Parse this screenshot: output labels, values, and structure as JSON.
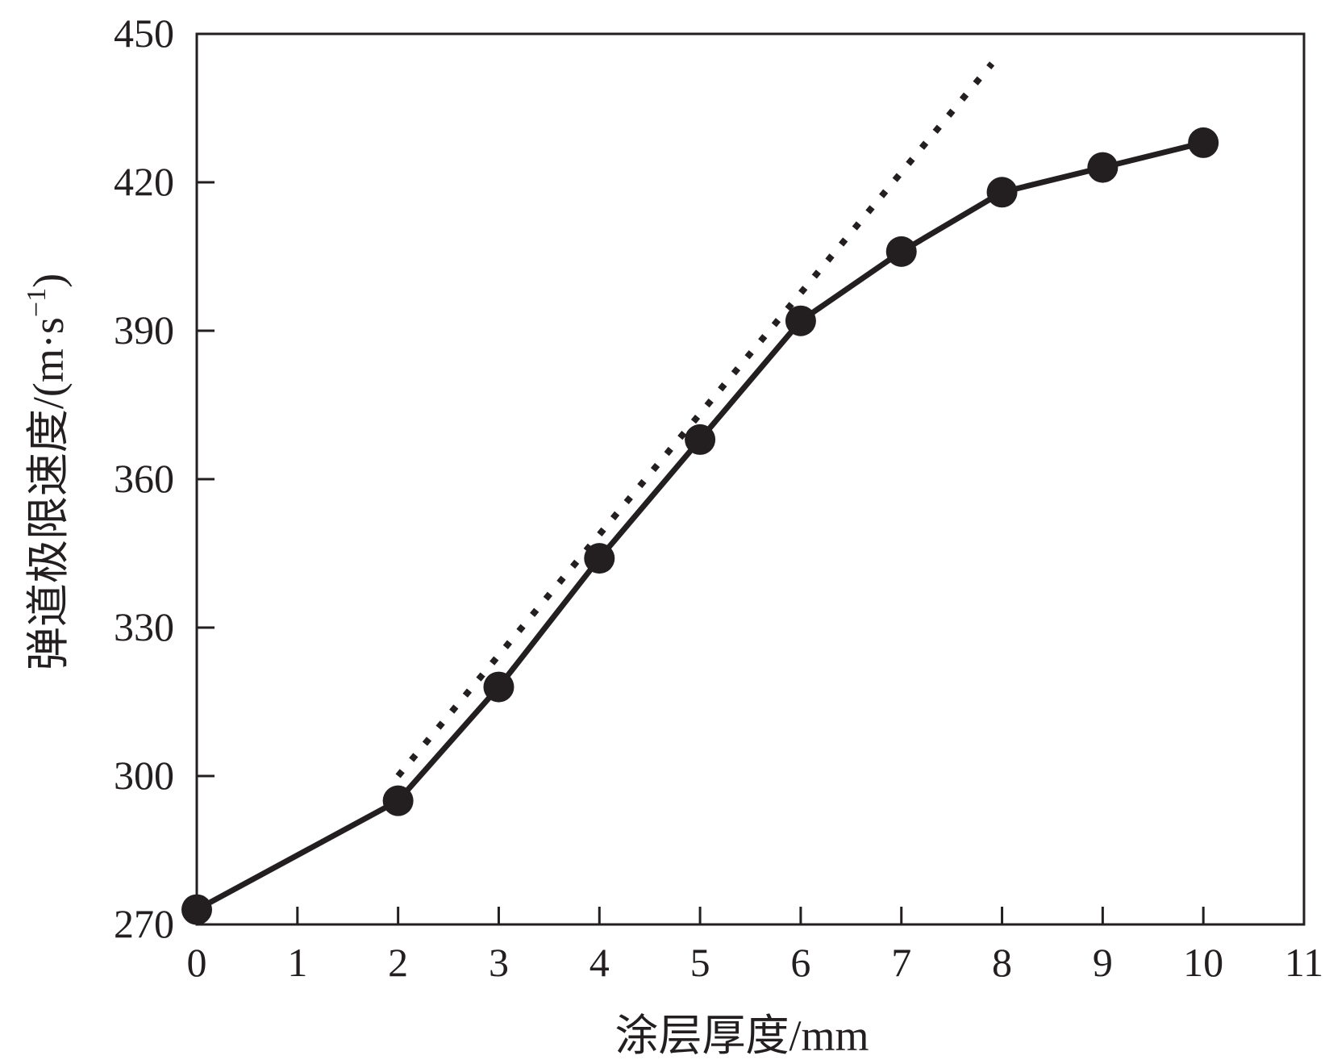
{
  "chart_data": {
    "type": "line",
    "xlabel": "涂层厚度/mm",
    "ylabel": "弹道极限速度/(m·s",
    "ylabel_superscript": "−1",
    "ylabel_close": ")",
    "xlim": [
      0,
      11
    ],
    "ylim": [
      270,
      450
    ],
    "x_ticks": [
      0,
      1,
      2,
      3,
      4,
      5,
      6,
      7,
      8,
      9,
      10,
      11
    ],
    "x_tick_labels": [
      "0",
      "1",
      "2",
      "3",
      "4",
      "5",
      "6",
      "7",
      "8",
      "9",
      "10",
      "11"
    ],
    "y_ticks": [
      270,
      300,
      330,
      360,
      390,
      420,
      450
    ],
    "y_tick_labels": [
      "270",
      "300",
      "330",
      "360",
      "390",
      "420",
      "450"
    ],
    "grid": false,
    "legend": "none",
    "series": [
      {
        "style": "solid-with-markers",
        "color": "#231f20",
        "x": [
          0,
          2,
          3,
          4,
          5,
          6,
          7,
          8,
          9,
          10
        ],
        "y": [
          273,
          295,
          318,
          344,
          368,
          392,
          406,
          418,
          423,
          428
        ]
      },
      {
        "style": "dotted",
        "color": "#231f20",
        "x": [
          2,
          7.9
        ],
        "y": [
          300,
          444
        ]
      }
    ]
  }
}
